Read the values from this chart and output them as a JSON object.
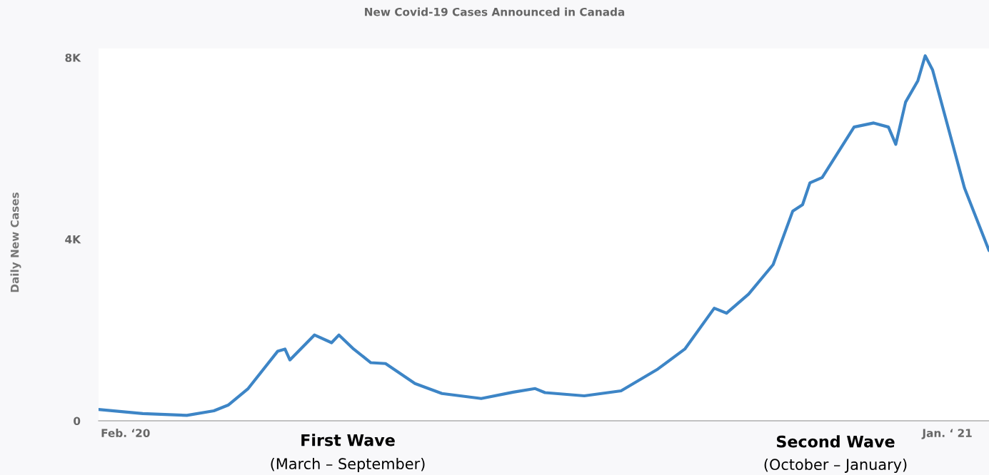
{
  "chart_data": {
    "type": "line",
    "title": "New Covid-19 Cases Announced in Canada",
    "ylabel": "Daily New Cases",
    "x": [
      "2020-01-21",
      "2020-02-08",
      "2020-02-26",
      "2020-03-08",
      "2020-03-14",
      "2020-03-22",
      "2020-04-03",
      "2020-04-06",
      "2020-04-08",
      "2020-04-18",
      "2020-04-25",
      "2020-04-28",
      "2020-05-04",
      "2020-05-11",
      "2020-05-17",
      "2020-05-29",
      "2020-06-09",
      "2020-06-25",
      "2020-07-08",
      "2020-07-17",
      "2020-07-21",
      "2020-08-06",
      "2020-08-21",
      "2020-09-05",
      "2020-09-16",
      "2020-09-28",
      "2020-10-03",
      "2020-10-12",
      "2020-10-22",
      "2020-10-30",
      "2020-11-03",
      "2020-11-06",
      "2020-11-11",
      "2020-11-24",
      "2020-12-02",
      "2020-12-08",
      "2020-12-11",
      "2020-12-15",
      "2020-12-20",
      "2020-12-23",
      "2020-12-26",
      "2021-01-08",
      "2021-01-18"
    ],
    "series": [
      {
        "color": "#3d85c6",
        "values": [
          250,
          160,
          120,
          220,
          350,
          710,
          1530,
          1580,
          1340,
          1890,
          1720,
          1890,
          1580,
          1280,
          1260,
          820,
          600,
          490,
          630,
          710,
          620,
          550,
          660,
          1140,
          1580,
          2480,
          2370,
          2790,
          3440,
          4620,
          4760,
          5240,
          5360,
          6470,
          6560,
          6470,
          6090,
          7020,
          7490,
          8040,
          7730,
          5130,
          3750
        ]
      }
    ],
    "xlim": [
      "2020-01-21",
      "2021-01-18"
    ],
    "xticks": [
      {
        "value": "2020-02-01",
        "label": "Feb. ‘20"
      },
      {
        "value": "2021-01-01",
        "label": "Jan. ‘ 21"
      }
    ],
    "ylim": [
      0,
      8200
    ],
    "yticks": [
      {
        "value": 0,
        "label": "0"
      },
      {
        "value": 4000,
        "label": "4K"
      },
      {
        "value": 8000,
        "label": "8K"
      }
    ],
    "grid": false,
    "marker": "none",
    "line_style": "solid",
    "annotations": [
      "First Wave",
      "(March – September)",
      "Second Wave",
      "(October – January)"
    ]
  }
}
